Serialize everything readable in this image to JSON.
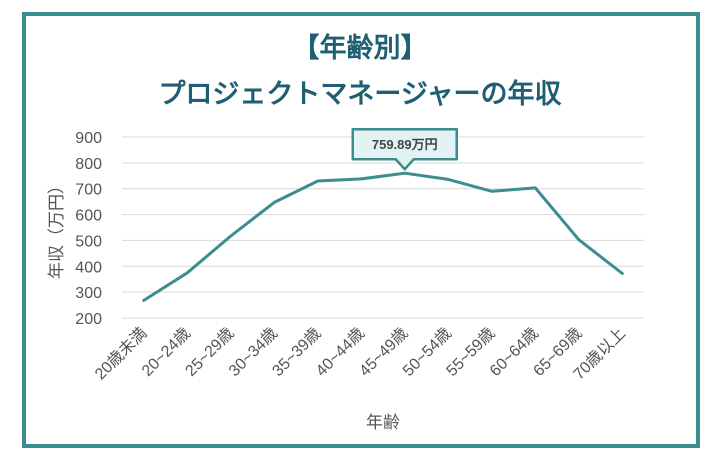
{
  "chart_data": {
    "type": "line",
    "title_line1": "【年齢別】",
    "title_line2": "プロジェクトマネージャーの年収",
    "xlabel": "年齢",
    "ylabel": "年収（万円）",
    "categories": [
      "20歳未満",
      "20~24歳",
      "25~29歳",
      "30~34歳",
      "35~39歳",
      "40~44歳",
      "45~49歳",
      "50~54歳",
      "55~59歳",
      "60~64歳",
      "65~69歳",
      "70歳以上"
    ],
    "series": [
      {
        "values": [
          268,
          375,
          517,
          647,
          730,
          738,
          759.89,
          736,
          690,
          703,
          503,
          372
        ]
      }
    ],
    "ylim": [
      200,
      900
    ],
    "yticks": [
      200,
      300,
      400,
      500,
      600,
      700,
      800,
      900
    ],
    "grid": true,
    "callout": {
      "category_index": 6,
      "text": "759.89万円"
    },
    "colors": {
      "line": "#3d8c8e",
      "frame": "#3d8c8e",
      "title": "#1f5f73",
      "grid": "#d9d9d9",
      "callout_fill": "#e3f2f2"
    }
  }
}
